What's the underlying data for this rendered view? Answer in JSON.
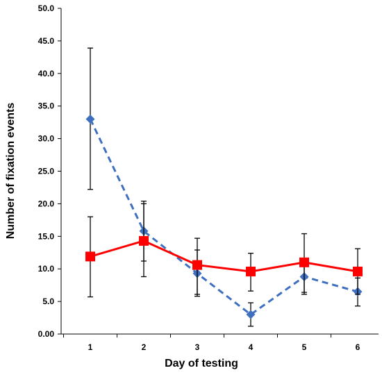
{
  "chart_data": {
    "type": "line",
    "xlabel": "Day of testing",
    "ylabel": "Number of fixation events",
    "x": [
      1,
      2,
      3,
      4,
      5,
      6
    ],
    "x_tick_labels": [
      "1",
      "2",
      "3",
      "4",
      "5",
      "6"
    ],
    "y_tick_labels": [
      "0.00",
      "5.0",
      "10.0",
      "15.0",
      "20.0",
      "25.0",
      "30.0",
      "35.0",
      "40.0",
      "45.0",
      "50.0"
    ],
    "ylim": [
      0,
      50
    ],
    "grid": false,
    "legend": "none",
    "series": [
      {
        "color": "#3f6fbf",
        "line_style": "dashed",
        "marker": "diamond",
        "values": [
          33.0,
          15.8,
          9.3,
          3.0,
          8.8,
          6.5
        ],
        "error_lower": [
          22.2,
          11.2,
          6.1,
          1.2,
          6.1,
          4.3
        ],
        "error_upper": [
          43.9,
          20.4,
          12.9,
          4.8,
          11.1,
          8.6
        ]
      },
      {
        "color": "#ff0000",
        "line_style": "solid",
        "marker": "square",
        "values": [
          11.9,
          14.3,
          10.6,
          9.6,
          11.0,
          9.6
        ],
        "error_lower": [
          5.7,
          8.8,
          5.8,
          6.6,
          6.4,
          6.1
        ],
        "error_upper": [
          18.0,
          20.0,
          14.7,
          12.4,
          15.4,
          13.1
        ]
      }
    ]
  }
}
